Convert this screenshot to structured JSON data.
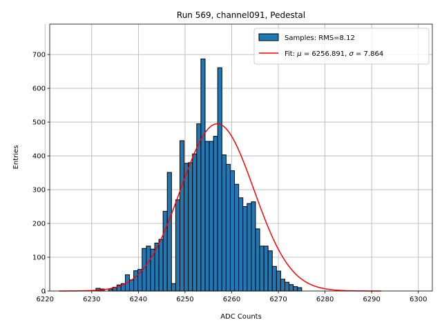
{
  "chart_data": {
    "type": "bar",
    "title": "Run 569, channel091, Pedestal",
    "xlabel": "ADC Counts",
    "ylabel": "Entries",
    "xlim": [
      6221,
      6303
    ],
    "ylim": [
      0,
      790
    ],
    "x_ticks": [
      6220,
      6230,
      6240,
      6250,
      6260,
      6270,
      6280,
      6290,
      6300
    ],
    "y_ticks": [
      0,
      100,
      200,
      300,
      400,
      500,
      600,
      700
    ],
    "grid": true,
    "legend_position": "top-right",
    "histogram": {
      "name": "Samples: RMS=8.12",
      "color": "#1f77b4",
      "edge_color": "#000000",
      "bin_start": 6230,
      "bin_width": 0.9,
      "counts": [
        0,
        8,
        6,
        0,
        6,
        11,
        18,
        22,
        48,
        33,
        60,
        64,
        126,
        133,
        124,
        142,
        153,
        236,
        351,
        22,
        270,
        445,
        378,
        380,
        406,
        495,
        687,
        443,
        443,
        458,
        661,
        403,
        375,
        356,
        316,
        276,
        250,
        259,
        264,
        184,
        133,
        133,
        119,
        73,
        59,
        35,
        26,
        19,
        13,
        10
      ]
    },
    "fit": {
      "name": "Fit: μ = 6256.891, σ = 7.864",
      "label_prefix": "Fit: ",
      "mu_symbol": "μ",
      "mu_text": " = 6256.891, ",
      "sigma_symbol": "σ",
      "sigma_text": " = 7.864",
      "color": "#ff0000",
      "mu": 6256.891,
      "sigma": 7.864,
      "amplitude": 495,
      "x_range": [
        6223,
        6292
      ]
    }
  }
}
